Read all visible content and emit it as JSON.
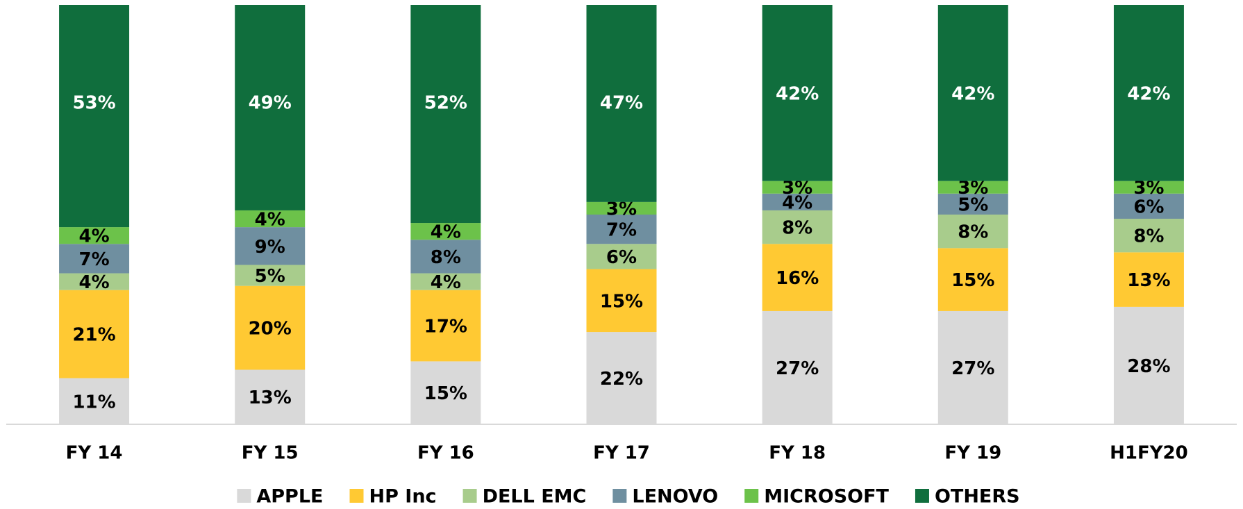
{
  "chart_data": {
    "type": "stacked_bar",
    "categories": [
      "FY 14",
      "FY 15",
      "FY 16",
      "FY 17",
      "FY 18",
      "FY 19",
      "H1FY20"
    ],
    "series": [
      {
        "name": "APPLE",
        "color": "#d9d9d9",
        "label_color": "#000000",
        "values": [
          11,
          13,
          15,
          22,
          27,
          27,
          28
        ],
        "value_labels": [
          "11%",
          "13%",
          "15%",
          "22%",
          "27%",
          "27%",
          "28%"
        ]
      },
      {
        "name": "HP Inc",
        "color": "#ffc933",
        "label_color": "#000000",
        "values": [
          21,
          20,
          17,
          15,
          16,
          15,
          13
        ],
        "value_labels": [
          "21%",
          "20%",
          "17%",
          "15%",
          "16%",
          "15%",
          "13%"
        ]
      },
      {
        "name": "DELL EMC",
        "color": "#a8cc8c",
        "label_color": "#000000",
        "values": [
          4,
          5,
          4,
          6,
          8,
          8,
          8
        ],
        "value_labels": [
          "4%",
          "5%",
          "4%",
          "6%",
          "8%",
          "8%",
          "8%"
        ]
      },
      {
        "name": "LENOVO",
        "color": "#6f8fa0",
        "label_color": "#000000",
        "values": [
          7,
          9,
          8,
          7,
          4,
          5,
          6
        ],
        "value_labels": [
          "7%",
          "9%",
          "8%",
          "7%",
          "4%",
          "5%",
          "6%"
        ]
      },
      {
        "name": "MICROSOFT",
        "color": "#6cc24a",
        "label_color": "#000000",
        "values": [
          4,
          4,
          4,
          3,
          3,
          3,
          3
        ],
        "value_labels": [
          "4%",
          "4%",
          "4%",
          "3%",
          "3%",
          "3%",
          "3%"
        ]
      },
      {
        "name": "OTHERS",
        "color": "#106e3d",
        "label_color": "#ffffff",
        "values": [
          53,
          49,
          52,
          47,
          42,
          42,
          42
        ],
        "value_labels": [
          "53%",
          "49%",
          "52%",
          "47%",
          "42%",
          "42%",
          "42%"
        ]
      }
    ],
    "legend": "bottom"
  }
}
